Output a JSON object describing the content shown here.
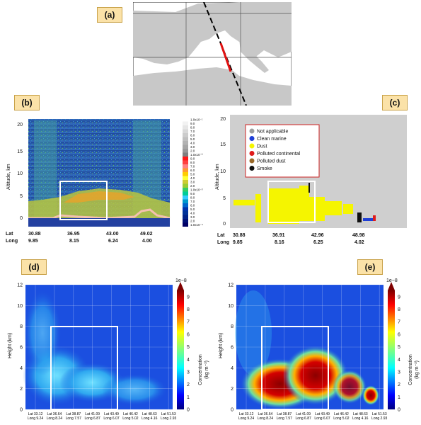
{
  "panels": {
    "a": {
      "label": "(a)"
    },
    "b": {
      "label": "(b)"
    },
    "c": {
      "label": "(c)"
    },
    "d": {
      "label": "(d)"
    },
    "e": {
      "label": "(e)"
    }
  },
  "panel_b": {
    "ylabel": "Altitude, km",
    "yticks": [
      "0",
      "5",
      "10",
      "15",
      "20"
    ],
    "lat_label": "Lat",
    "long_label": "Long",
    "lat_ticks": [
      "30.88",
      "36.95",
      "43.00",
      "49.02"
    ],
    "long_ticks": [
      "9.85",
      "8.15",
      "6.24",
      "4.00"
    ],
    "colorbar_labels": [
      "1.0x10⁻¹",
      "9.0",
      "8.0",
      "7.0",
      "6.0",
      "5.0",
      "4.0",
      "3.0",
      "2.0",
      "1.0x10⁻²",
      "9.0",
      "8.0",
      "7.0",
      "6.0",
      "5.0",
      "4.0",
      "3.0",
      "2.0",
      "1.0x10⁻³",
      "9.0",
      "8.0",
      "7.0",
      "6.0",
      "5.0",
      "4.0",
      "3.0",
      "2.0",
      "1.0x10⁻⁴"
    ]
  },
  "panel_c": {
    "ylabel": "Altitude, km",
    "yticks": [
      "0",
      "5",
      "10",
      "15",
      "20"
    ],
    "lat_label": "Lat",
    "long_label": "Long",
    "lat_ticks": [
      "30.88",
      "36.91",
      "42.96",
      "48.98"
    ],
    "long_ticks": [
      "9.85",
      "8.16",
      "6.25",
      "4.02"
    ],
    "legend": [
      {
        "label": "Not applicable",
        "color": "#9e9e9e"
      },
      {
        "label": "Clean marine",
        "color": "#1f3fd6"
      },
      {
        "label": "Dust",
        "color": "#f5f500"
      },
      {
        "label": "Polluted continental",
        "color": "#e01b1b"
      },
      {
        "label": "Polluted dust",
        "color": "#9a6a2a"
      },
      {
        "label": "Smoke",
        "color": "#111111"
      }
    ]
  },
  "panel_d": {
    "ylabel": "Height (km)",
    "yticks": [
      "0",
      "2",
      "4",
      "6",
      "8",
      "10",
      "12"
    ],
    "xticks": [
      {
        "lat": "Lat 33.12",
        "long": "Long 9.24"
      },
      {
        "lat": "Lat 36.64",
        "long": "Long 8.24"
      },
      {
        "lat": "Lat 38.87",
        "long": "Long 7.57"
      },
      {
        "lat": "Lat 41.09",
        "long": "Long 6.87"
      },
      {
        "lat": "Lat 43.49",
        "long": "Long 6.07"
      },
      {
        "lat": "Lat 46.42",
        "long": "Long 5.02"
      },
      {
        "lat": "Lat 48.63",
        "long": "Long 4.16"
      },
      {
        "lat": "Lat 51.53",
        "long": "Long 2.93"
      }
    ],
    "cbar_exp": "1e−8",
    "cbar_ticks": [
      "0",
      "1",
      "2",
      "3",
      "4",
      "5",
      "6",
      "7",
      "8",
      "9"
    ],
    "cbar_label": "Concentration",
    "cbar_unit": "(kg m⁻³)"
  },
  "panel_e": {
    "ylabel": "Height (km)",
    "yticks": [
      "0",
      "2",
      "4",
      "6",
      "8",
      "10",
      "12"
    ],
    "xticks": [
      {
        "lat": "Lat 33.12",
        "long": "Long 9.24"
      },
      {
        "lat": "Lat 36.64",
        "long": "Long 8.24"
      },
      {
        "lat": "Lat 38.87",
        "long": "Long 7.57"
      },
      {
        "lat": "Lat 41.09",
        "long": "Long 6.87"
      },
      {
        "lat": "Lat 43.49",
        "long": "Long 6.07"
      },
      {
        "lat": "Lat 46.42",
        "long": "Long 5.02"
      },
      {
        "lat": "Lat 48.63",
        "long": "Long 4.16"
      },
      {
        "lat": "Lat 51.53",
        "long": "Long 2.93"
      }
    ],
    "cbar_exp": "1e−8",
    "cbar_ticks": [
      "0",
      "1",
      "2",
      "3",
      "4",
      "5",
      "6",
      "7",
      "8",
      "9"
    ],
    "cbar_label": "Concentration",
    "cbar_unit": "(kg m⁻³)"
  }
}
